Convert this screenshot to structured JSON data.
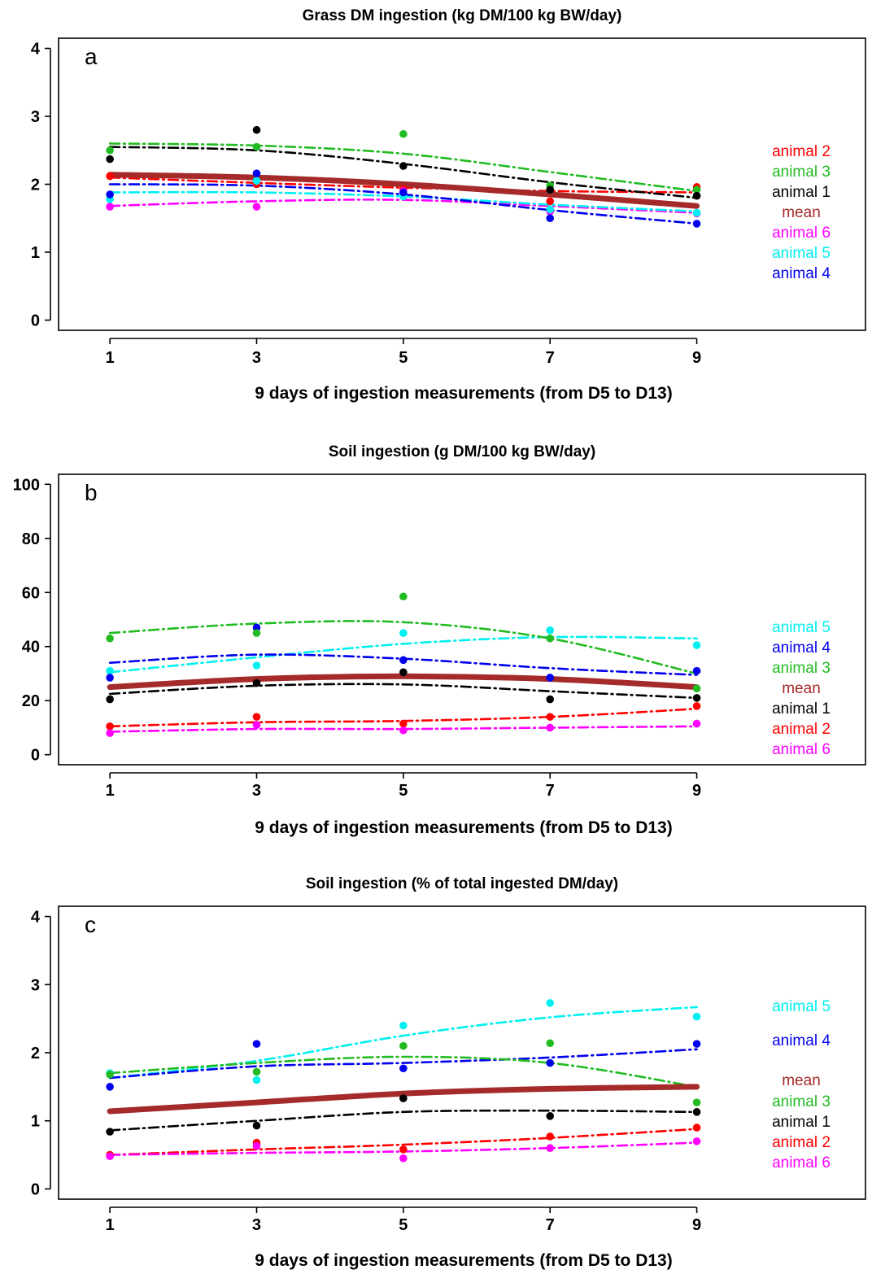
{
  "chart_data": [
    {
      "type": "line",
      "panel": "a",
      "title": "Grass DM ingestion (kg DM/100 kg BW/day)",
      "xlabel": "9 days of ingestion measurements (from D5 to D13)",
      "ylabel": "",
      "xticks": [
        1,
        3,
        5,
        7,
        9
      ],
      "yticks": [
        0,
        1,
        2,
        3,
        4
      ],
      "xlim": [
        0.3,
        11.3
      ],
      "ylim": [
        -0.15,
        4.15
      ],
      "x": [
        1,
        3,
        5,
        7,
        9
      ],
      "legend_order": [
        "animal 2",
        "animal 3",
        "animal 1",
        "mean",
        "animal 6",
        "animal 5",
        "animal 4"
      ],
      "series": [
        {
          "name": "animal 2",
          "color": "#ff0000",
          "points": [
            2.12,
            2.0,
            1.93,
            1.75,
            1.96
          ],
          "fit": [
            2.1,
            2.02,
            1.95,
            1.9,
            1.88
          ]
        },
        {
          "name": "animal 3",
          "color": "#22bb22",
          "points": [
            2.5,
            2.55,
            2.74,
            1.98,
            1.92
          ],
          "fit": [
            2.6,
            2.57,
            2.45,
            2.18,
            1.9
          ]
        },
        {
          "name": "animal 1",
          "color": "#000000",
          "points": [
            2.37,
            2.8,
            2.27,
            1.92,
            1.83
          ],
          "fit": [
            2.55,
            2.5,
            2.3,
            2.03,
            1.8
          ]
        },
        {
          "name": "animal 6",
          "color": "#ff00ff",
          "points": [
            1.67,
            1.67,
            1.9,
            1.6,
            1.57
          ],
          "fit": [
            1.68,
            1.75,
            1.77,
            1.68,
            1.58
          ]
        },
        {
          "name": "animal 5",
          "color": "#00f0f0",
          "points": [
            1.78,
            2.05,
            1.82,
            1.63,
            1.58
          ],
          "fit": [
            1.88,
            1.88,
            1.82,
            1.7,
            1.6
          ]
        },
        {
          "name": "animal 4",
          "color": "#0000ee",
          "points": [
            1.85,
            2.16,
            1.88,
            1.5,
            1.42
          ],
          "fit": [
            2.0,
            1.98,
            1.85,
            1.62,
            1.42
          ]
        },
        {
          "name": "mean",
          "color": "#a52a2a",
          "points": [],
          "fit": [
            2.14,
            2.1,
            2.0,
            1.85,
            1.68
          ],
          "thick": true
        }
      ]
    },
    {
      "type": "line",
      "panel": "b",
      "title": "Soil ingestion (g DM/100 kg BW/day)",
      "xlabel": "9 days of ingestion measurements (from D5 to D13)",
      "ylabel": "",
      "xticks": [
        1,
        3,
        5,
        7,
        9
      ],
      "yticks": [
        0,
        20,
        40,
        60,
        80,
        100
      ],
      "xlim": [
        0.3,
        11.3
      ],
      "ylim": [
        -3.7,
        103.7
      ],
      "x": [
        1,
        3,
        5,
        7,
        9
      ],
      "legend_order": [
        "animal 5",
        "animal 4",
        "animal 3",
        "mean",
        "animal 1",
        "animal 2",
        "animal 6"
      ],
      "series": [
        {
          "name": "animal 5",
          "color": "#00f0f0",
          "points": [
            31,
            33,
            45,
            46,
            40.5
          ],
          "fit": [
            30.5,
            36,
            41,
            43.5,
            43
          ]
        },
        {
          "name": "animal 4",
          "color": "#0000ee",
          "points": [
            28.5,
            47,
            35,
            28.5,
            31
          ],
          "fit": [
            34,
            37,
            35.5,
            32,
            29.5
          ]
        },
        {
          "name": "animal 3",
          "color": "#22bb22",
          "points": [
            43,
            45,
            58.5,
            43,
            24.5
          ],
          "fit": [
            45,
            48.5,
            49,
            43,
            30
          ]
        },
        {
          "name": "animal 1",
          "color": "#000000",
          "points": [
            20.5,
            26.5,
            30.5,
            20.5,
            21
          ],
          "fit": [
            22.5,
            25.5,
            26,
            23.5,
            21
          ]
        },
        {
          "name": "animal 2",
          "color": "#ff0000",
          "points": [
            10.5,
            14,
            11.5,
            14,
            18
          ],
          "fit": [
            10.5,
            12,
            12.5,
            14,
            17
          ]
        },
        {
          "name": "animal 6",
          "color": "#ff00ff",
          "points": [
            8,
            11,
            9,
            10,
            11.5
          ],
          "fit": [
            8.5,
            9.5,
            9.5,
            10,
            10.5
          ]
        },
        {
          "name": "mean",
          "color": "#a52a2a",
          "points": [],
          "fit": [
            25,
            28,
            29,
            28,
            25
          ],
          "thick": true
        }
      ]
    },
    {
      "type": "line",
      "panel": "c",
      "title": "Soil ingestion (% of total ingested DM/day)",
      "xlabel": "9 days of ingestion measurements (from D5 to D13)",
      "ylabel": "",
      "xticks": [
        1,
        3,
        5,
        7,
        9
      ],
      "yticks": [
        0,
        1,
        2,
        3,
        4
      ],
      "xlim": [
        0.3,
        11.3
      ],
      "ylim": [
        -0.15,
        4.15
      ],
      "x": [
        1,
        3,
        5,
        7,
        9
      ],
      "legend_order": [
        "animal 5",
        "animal 4",
        "mean",
        "animal 3",
        "animal 1",
        "animal 2",
        "animal 6"
      ],
      "series": [
        {
          "name": "animal 5",
          "color": "#00f0f0",
          "points": [
            1.7,
            1.6,
            2.4,
            2.73,
            2.53
          ],
          "fit": [
            1.63,
            1.88,
            2.25,
            2.52,
            2.67
          ]
        },
        {
          "name": "animal 4",
          "color": "#0000ee",
          "points": [
            1.5,
            2.13,
            1.77,
            1.85,
            2.13
          ],
          "fit": [
            1.63,
            1.8,
            1.85,
            1.93,
            2.05
          ]
        },
        {
          "name": "animal 3",
          "color": "#22bb22",
          "points": [
            1.68,
            1.72,
            2.1,
            2.14,
            1.27
          ],
          "fit": [
            1.7,
            1.85,
            1.94,
            1.85,
            1.5
          ]
        },
        {
          "name": "animal 1",
          "color": "#000000",
          "points": [
            0.84,
            0.93,
            1.33,
            1.07,
            1.13
          ],
          "fit": [
            0.86,
            1.0,
            1.13,
            1.15,
            1.13
          ]
        },
        {
          "name": "animal 2",
          "color": "#ff0000",
          "points": [
            0.5,
            0.68,
            0.58,
            0.77,
            0.9
          ],
          "fit": [
            0.5,
            0.58,
            0.65,
            0.75,
            0.88
          ]
        },
        {
          "name": "animal 6",
          "color": "#ff00ff",
          "points": [
            0.48,
            0.63,
            0.45,
            0.6,
            0.7
          ],
          "fit": [
            0.5,
            0.53,
            0.55,
            0.6,
            0.68
          ]
        },
        {
          "name": "mean",
          "color": "#a52a2a",
          "points": [],
          "fit": [
            1.14,
            1.27,
            1.4,
            1.47,
            1.5
          ],
          "thick": true
        }
      ]
    }
  ]
}
